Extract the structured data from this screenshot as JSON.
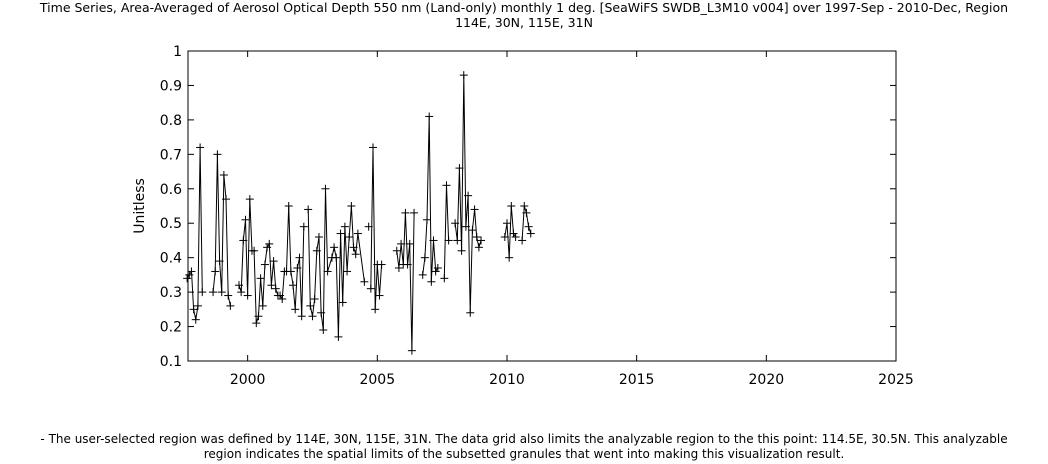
{
  "title_lines": [
    "Time Series, Area-Averaged of Aerosol Optical Depth 550 nm (Land-only) monthly 1 deg. [SeaWiFS SWDB_L3M10 v004] over 1997-Sep - 2010-Dec, Region",
    "114E, 30N, 115E, 31N"
  ],
  "footnote_lines": [
    "- The user-selected region was defined by 114E, 30N, 115E, 31N. The data grid also limits the analyzable region to the this point: 114.5E, 30.5N. This analyzable",
    "region indicates the spatial limits of the subsetted granules that went into making this visualization result."
  ],
  "chart_data": {
    "type": "line",
    "ylabel": "Unitless",
    "xlabel": "",
    "xlim": [
      1997.7,
      2025
    ],
    "ylim": [
      0.1,
      1.0
    ],
    "x_ticks": [
      "2000",
      "2005",
      "2010",
      "2015",
      "2020",
      "2025"
    ],
    "y_ticks": [
      "0.1",
      "0.2",
      "0.3",
      "0.4",
      "0.5",
      "0.6",
      "0.7",
      "0.8",
      "0.9",
      "1"
    ],
    "marker": "+",
    "line_color": "#000000",
    "grid": false,
    "series": [
      {
        "x": [
          "1997-09",
          "1997-10",
          "1997-11",
          "1997-12",
          "1998-01",
          "1998-02",
          "1998-03",
          "1998-04",
          "1998-09",
          "1998-10",
          "1998-11",
          "1998-12",
          "1999-01",
          "1999-02",
          "1999-03",
          "1999-04",
          "1999-05",
          "1999-09",
          "1999-10",
          "1999-11",
          "1999-12",
          "2000-01",
          "2000-02",
          "2000-03",
          "2000-04",
          "2000-05",
          "2000-06",
          "2000-07",
          "2000-08",
          "2000-09",
          "2000-10",
          "2000-11",
          "2000-12",
          "2001-01",
          "2001-02",
          "2001-03",
          "2001-04",
          "2001-05",
          "2001-06",
          "2001-07",
          "2001-08",
          "2001-09",
          "2001-10",
          "2001-11",
          "2001-12",
          "2002-01",
          "2002-02",
          "2002-03",
          "2002-05",
          "2002-06",
          "2002-07",
          "2002-08",
          "2002-09",
          "2002-10",
          "2002-11",
          "2002-12",
          "2003-01",
          "2003-02",
          "2003-04",
          "2003-05",
          "2003-06",
          "2003-07",
          "2003-08",
          "2003-09",
          "2003-10",
          "2003-11",
          "2003-12",
          "2004-01",
          "2004-02",
          "2004-03",
          "2004-04",
          "2004-07",
          "2004-09",
          "2004-10",
          "2004-11",
          "2004-12",
          "2005-01",
          "2005-02",
          "2005-03",
          "2005-10",
          "2005-11",
          "2005-12",
          "2006-01",
          "2006-02",
          "2006-03",
          "2006-04",
          "2006-05",
          "2006-06",
          "2006-10",
          "2006-11",
          "2006-12",
          "2007-01",
          "2007-02",
          "2007-03",
          "2007-04",
          "2007-05",
          "2007-08",
          "2007-09",
          "2007-10",
          "2008-01",
          "2008-02",
          "2008-03",
          "2008-04",
          "2008-05",
          "2008-06",
          "2008-07",
          "2008-08",
          "2008-09",
          "2008-10",
          "2008-11",
          "2008-12",
          "2009-01",
          "2009-12",
          "2010-01",
          "2010-02",
          "2010-03",
          "2010-04",
          "2010-05",
          "2010-08",
          "2010-09",
          "2010-10",
          "2010-11",
          "2010-12"
        ],
        "y": [
          0.34,
          0.35,
          0.36,
          0.25,
          0.22,
          0.26,
          0.72,
          0.3,
          0.3,
          0.36,
          0.7,
          0.39,
          0.3,
          0.64,
          0.57,
          0.29,
          0.26,
          0.32,
          0.3,
          0.45,
          0.51,
          0.29,
          0.57,
          0.42,
          0.42,
          0.21,
          0.23,
          0.34,
          0.26,
          0.38,
          0.43,
          0.44,
          0.32,
          0.39,
          0.31,
          0.29,
          0.29,
          0.28,
          0.36,
          0.36,
          0.55,
          0.36,
          0.32,
          0.25,
          0.37,
          0.4,
          0.23,
          0.49,
          0.54,
          0.26,
          0.23,
          0.28,
          0.42,
          0.46,
          0.24,
          0.19,
          0.6,
          0.36,
          0.4,
          0.43,
          0.4,
          0.17,
          0.47,
          0.27,
          0.49,
          0.36,
          0.46,
          0.55,
          0.43,
          0.41,
          0.47,
          0.33,
          0.49,
          0.31,
          0.72,
          0.25,
          0.38,
          0.29,
          0.38,
          0.42,
          0.37,
          0.44,
          0.38,
          0.53,
          0.38,
          0.44,
          0.13,
          0.53,
          0.35,
          0.4,
          0.51,
          0.81,
          0.33,
          0.45,
          0.36,
          0.37,
          0.34,
          0.61,
          0.45,
          0.5,
          0.45,
          0.66,
          0.42,
          0.93,
          0.49,
          0.58,
          0.24,
          0.48,
          0.54,
          0.46,
          0.43,
          0.45,
          0.46,
          0.5,
          0.4,
          0.55,
          0.47,
          0.46,
          0.45,
          0.55,
          0.53,
          0.49,
          0.47
        ],
        "gaps_after_index": [
          7,
          16,
          47,
          71,
          72,
          78,
          87,
          95,
          98,
          111,
          117
        ]
      }
    ]
  }
}
